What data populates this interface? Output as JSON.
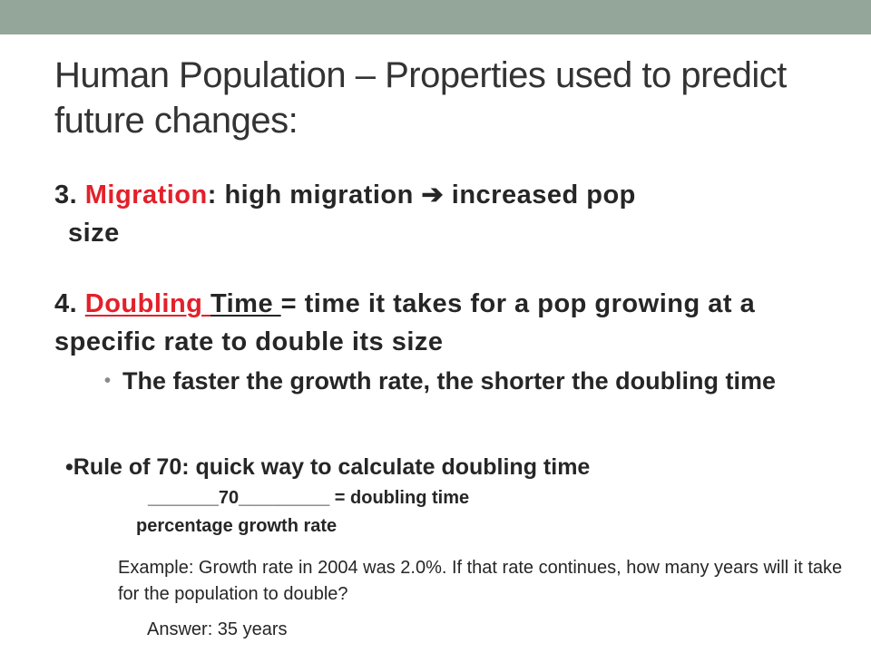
{
  "slide": {
    "title": "Human Population – Properties used to predict future changes:",
    "item3": {
      "number": "3. ",
      "term": "Migration",
      "text_a": ": high migration ",
      "arrow": "➔",
      "text_b": " increased pop",
      "text_c": "size"
    },
    "item4": {
      "number": "4. ",
      "term": "Doubling ",
      "term2": "Time ",
      "text": "= time it takes for a pop growing at a specific rate to double its size"
    },
    "sub_bullet": {
      "marker": "•",
      "text": "The faster the growth rate, the shorter the doubling time"
    },
    "rule": {
      "marker": "•",
      "term": "Rule of 70",
      "text": ": quick way to calculate doubling time"
    },
    "formula": {
      "numerator": "_______70_________",
      "equals": " = doubling time",
      "denominator": "percentage growth rate"
    },
    "example": {
      "text": "Example: Growth rate in 2004 was 2.0%. If that rate continues, how many years will it take for the population to double?",
      "answer": "Answer: 35 years"
    },
    "colors": {
      "topbar": "#94a59a",
      "accent_red": "#e4202a",
      "text": "#262626"
    }
  }
}
